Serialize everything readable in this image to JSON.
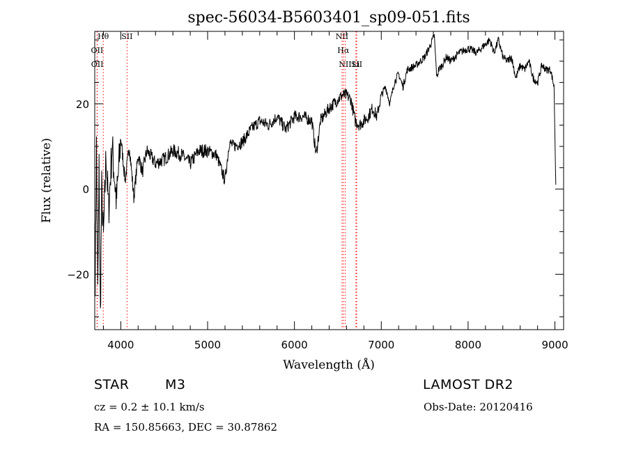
{
  "chart_data": {
    "type": "line",
    "title": "spec-56034-B5603401_sp09-051.fits",
    "xlabel": "Wavelength (Å)",
    "ylabel": "Flux (relative)",
    "xlim": [
      3700,
      9100
    ],
    "ylim": [
      -33,
      37
    ],
    "x_ticks": [
      4000,
      5000,
      6000,
      7000,
      8000,
      9000
    ],
    "x_tick_labels": [
      "4000",
      "5000",
      "6000",
      "7000",
      "8000",
      "9000"
    ],
    "y_ticks": [
      -20,
      0,
      20
    ],
    "y_tick_labels": [
      "−20",
      "0",
      "20"
    ],
    "x_minor_step": 200,
    "y_minor_step": 5,
    "grid": false,
    "line_color": "#000000",
    "marker_color": "#ff0000",
    "series": [
      {
        "x": [
          3705,
          3720,
          3735,
          3750,
          3765,
          3780,
          3800,
          3830,
          3860,
          3900,
          3950,
          4000,
          4050,
          4100,
          4150,
          4200,
          4250,
          4300,
          4400,
          4500,
          4600,
          4700,
          4800,
          4900,
          5000,
          5100,
          5200,
          5250,
          5300,
          5400,
          5500,
          5600,
          5700,
          5800,
          5900,
          6000,
          6100,
          6200,
          6250,
          6300,
          6400,
          6450,
          6500,
          6550,
          6600,
          6650,
          6700,
          6750,
          6800,
          6850,
          6900,
          6950,
          7000,
          7050,
          7100,
          7150,
          7200,
          7250,
          7300,
          7400,
          7500,
          7550,
          7590,
          7610,
          7640,
          7660,
          7700,
          7750,
          7800,
          7900,
          8000,
          8100,
          8200,
          8250,
          8300,
          8350,
          8400,
          8450,
          8500,
          8550,
          8600,
          8650,
          8700,
          8750,
          8800,
          8850,
          8900,
          8950,
          8990,
          9010
        ],
        "y": [
          -20,
          10,
          -25,
          5,
          -30,
          0,
          -12,
          8,
          -5,
          10,
          -3,
          12,
          2,
          10,
          -2,
          8,
          4,
          9,
          6,
          7,
          9,
          8,
          6,
          9,
          9,
          8,
          2,
          11,
          10,
          11,
          14,
          16,
          15,
          17,
          14,
          17,
          17,
          16,
          8,
          16,
          19,
          20,
          21,
          22,
          22,
          21,
          16,
          15,
          16,
          17,
          19,
          17,
          22,
          24,
          20,
          25,
          27,
          24,
          28,
          29,
          31,
          33,
          35,
          36,
          26,
          28,
          29,
          31,
          30,
          32,
          33,
          32,
          34,
          35,
          32,
          35,
          31,
          30,
          31,
          26,
          29,
          28,
          30,
          26,
          25,
          29,
          28,
          28,
          24,
          1
        ],
        "smoothness": 0.15
      }
    ],
    "line_markers": [
      {
        "name": "Hθ",
        "wavelength": 3798
      },
      {
        "name": "OII",
        "wavelength": 3727
      },
      {
        "name": "OII",
        "wavelength": 3729
      },
      {
        "name": "SII",
        "wavelength": 4072
      },
      {
        "name": "NII",
        "wavelength": 6548
      },
      {
        "name": "Hα",
        "wavelength": 6563
      },
      {
        "name": "NII",
        "wavelength": 6584
      },
      {
        "name": "SII",
        "wavelength": 6717
      },
      {
        "name": "Li",
        "wavelength": 6708
      }
    ]
  },
  "info": {
    "object_class": "STAR",
    "subclass": "M3",
    "survey": "LAMOST DR2",
    "redshift": "cz = 0.2 ± 10.1 km/s",
    "obs_date": "Obs-Date: 20120416",
    "coords": "RA = 150.85663, DEC =  30.87862"
  }
}
